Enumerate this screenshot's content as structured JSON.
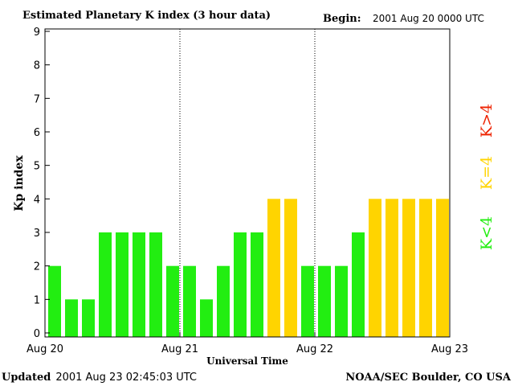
{
  "chart_data": {
    "type": "bar",
    "title": "Estimated Planetary K index (3 hour data)",
    "begin_label": "Begin:",
    "begin_value": "2001 Aug 20 0000 UTC",
    "xlabel": "Universal Time",
    "ylabel": "Kp index",
    "ylim": [
      0,
      9
    ],
    "yticks": [
      "0",
      "1",
      "2",
      "3",
      "4",
      "5",
      "6",
      "7",
      "8",
      "9"
    ],
    "xticks": [
      "Aug 20",
      "Aug 21",
      "Aug 22",
      "Aug 23"
    ],
    "values": [
      2,
      1,
      1,
      3,
      3,
      3,
      3,
      2,
      2,
      1,
      2,
      3,
      3,
      4,
      4,
      2,
      2,
      2,
      3,
      4,
      4,
      4,
      4,
      4
    ],
    "colors": {
      "below": "#22ee11",
      "equal": "#ffd400",
      "above": "#ee2200"
    },
    "legend": [
      {
        "label": "K<4",
        "color": "#22ee11"
      },
      {
        "label": "K=4",
        "color": "#ffd400"
      },
      {
        "label": "K>4",
        "color": "#ee2200"
      }
    ],
    "grid": false,
    "day_separators": "dotted"
  },
  "footer": {
    "updated_label": "Updated",
    "updated_value": "2001 Aug 23 02:45:03 UTC",
    "source": "NOAA/SEC Boulder, CO USA"
  }
}
